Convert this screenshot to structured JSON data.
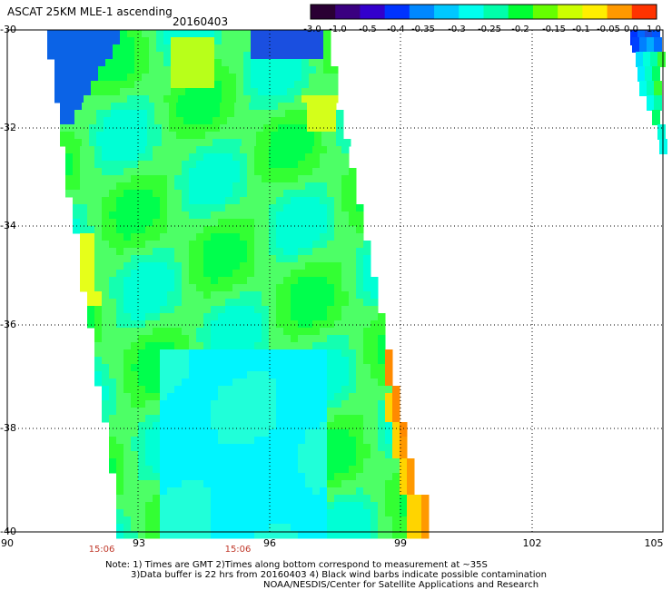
{
  "title": "ASCAT 25KM MLE-1 ascending",
  "date": "20160403",
  "colorbar": {
    "labels": [
      "-3.0",
      "-1.0",
      "-0.5",
      "-0.4",
      "-0.35",
      "-0.3",
      "-0.25",
      "-0.2",
      "-0.15",
      "-0.1",
      "-0.05",
      "0.0",
      "1.0"
    ],
    "colors": [
      "#2a0033",
      "#3a0080",
      "#3300cc",
      "#0033ff",
      "#0088ff",
      "#00c8ff",
      "#00ffee",
      "#00ffaa",
      "#00ff33",
      "#66ff00",
      "#ccff00",
      "#ffee00",
      "#ff9900",
      "#ff3300"
    ]
  },
  "axes": {
    "lat_labels": [
      "-30",
      "-32",
      "-34",
      "-36",
      "-38",
      "-40"
    ],
    "lon_labels": [
      "90",
      "93",
      "96",
      "99",
      "102",
      "105"
    ],
    "time_labels": [
      "15:06",
      "15:06"
    ]
  },
  "notes": [
    "Note: 1) Times are GMT 2)Times along bottom correspond to measurement at ~35S",
    "3)Data buffer is 22 hrs from 20160403 4) Black wind barbs indicate possible contamination",
    "NOAA/NESDIS/Center for Satellite Applications and Research"
  ]
}
